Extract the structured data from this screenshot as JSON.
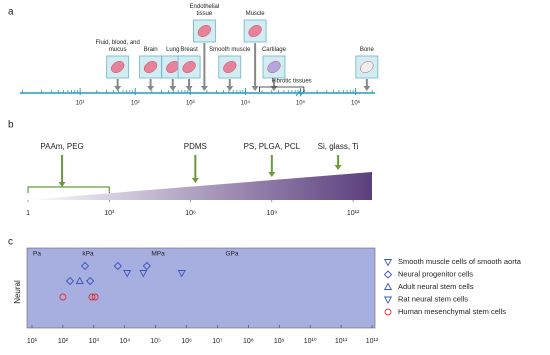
{
  "chart_data": [
    {
      "panel": "a",
      "type": "scale",
      "xscale": "log",
      "xlim": [
        0.81,
        2250000
      ],
      "xticks": [
        {
          "value": 10,
          "label": "10¹"
        },
        {
          "value": 100,
          "label": "10²"
        },
        {
          "value": 1000,
          "label": "10³"
        },
        {
          "value": 10000,
          "label": "10⁴"
        },
        {
          "value": 100000,
          "label": "10⁵"
        },
        {
          "value": 1000000,
          "label": "10⁶"
        }
      ],
      "categories": [
        "Fluid, blood, and mucus",
        "Brain",
        "Lung",
        "Breast",
        "Endothelial tissue",
        "Smooth muscle",
        "Muscle",
        "Cartilage",
        "Bone"
      ],
      "x": [
        48,
        190,
        480,
        950,
        1800,
        5200,
        15000,
        33000,
        1600000
      ],
      "range_label": "Fibrotic tissues",
      "range": [
        18000,
        115000
      ],
      "color": "#2a9bb5"
    },
    {
      "panel": "b",
      "type": "gradient-scale",
      "xscale": "log",
      "xlim": [
        0.77,
        5000000000000
      ],
      "xticks": [
        1,
        {
          "value": 1000,
          "label": "10³"
        },
        {
          "value": 1000000,
          "label": "10⁶"
        },
        {
          "value": 1000000000,
          "label": "10⁹"
        },
        {
          "value": 1000000000000,
          "label": "10¹²"
        }
      ],
      "categories": [
        "PAAm, PEG",
        "PDMS",
        "PS, PLGA, PCL",
        "Si, glass, Ti"
      ],
      "x": [
        18,
        1500000,
        1000000000,
        280000000000
      ],
      "bracket": [
        1,
        1000
      ],
      "color": "#5b3f7e",
      "arrow_color": "#6a9a3a"
    },
    {
      "panel": "c",
      "type": "scatter",
      "xscale": "log",
      "xlim": [
        6.9,
        1250000000000
      ],
      "xticks": [
        {
          "value": 10,
          "label": "10¹"
        },
        {
          "value": 100,
          "label": "10²"
        },
        {
          "value": 1000,
          "label": "10³"
        },
        {
          "value": 10000,
          "label": "10⁴"
        },
        {
          "value": 100000,
          "label": "10⁵"
        },
        {
          "value": 1000000,
          "label": "10⁶"
        },
        {
          "value": 10000000,
          "label": "10⁷"
        },
        {
          "value": 100000000,
          "label": "10⁸"
        },
        {
          "value": 1000000000,
          "label": "10⁹"
        },
        {
          "value": 10000000000,
          "label": "10¹⁰"
        },
        {
          "value": 100000000000,
          "label": "10¹¹"
        },
        {
          "value": 1000000000000,
          "label": "10¹²"
        }
      ],
      "unit_labels": [
        "Pa",
        "kPa",
        "MPa",
        "GPa"
      ],
      "categories": [
        "Neural"
      ],
      "background": "#a7aee0",
      "series": [
        {
          "name": "Smooth muscle cells of smooth aorta",
          "marker": "triangle-down",
          "color": "#3a55b8",
          "x": [
            700000
          ]
        },
        {
          "name": "Neural progenitor cells",
          "marker": "diamond",
          "color": "#3a55b8",
          "x": [
            520,
            6000,
            52000,
            170,
            760
          ]
        },
        {
          "name": "Adult neural stem cells",
          "marker": "triangle-up",
          "color": "#3a55b8",
          "x": [
            350
          ]
        },
        {
          "name": "Rat neural stem cells",
          "marker": "triangle-down",
          "color": "#3a55b8",
          "x": [
            12000,
            40000
          ]
        },
        {
          "name": "Human mesenchymal stem cells",
          "marker": "circle",
          "color": "#e03030",
          "x": [
            100,
            870,
            1100
          ]
        }
      ]
    }
  ]
}
